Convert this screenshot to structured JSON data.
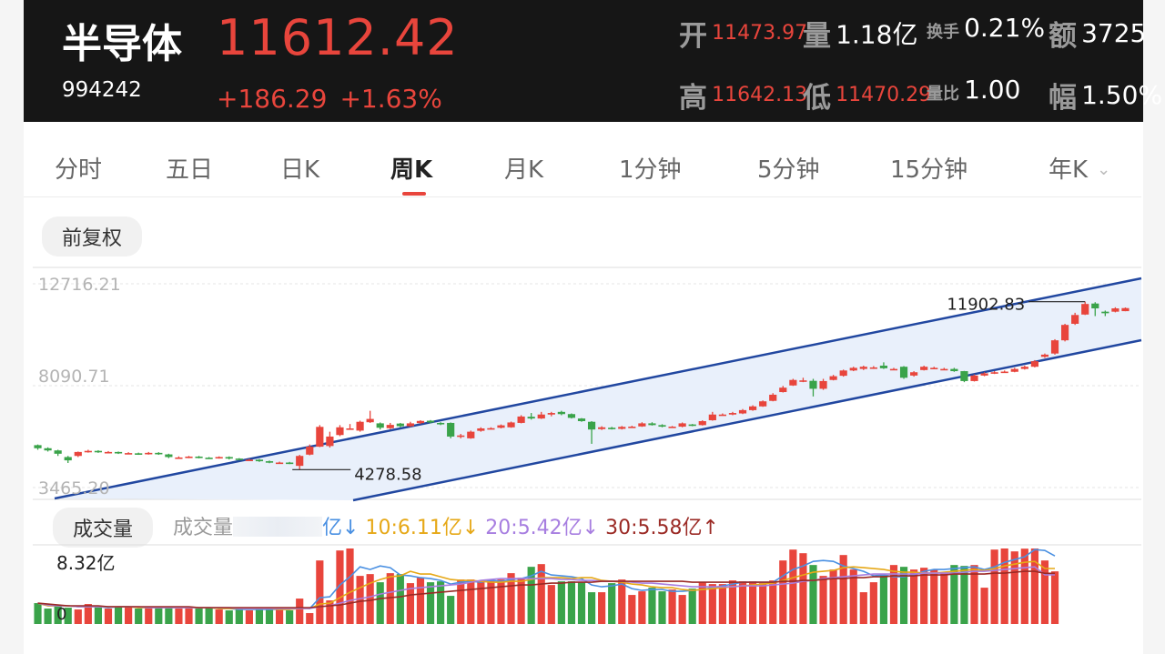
{
  "header": {
    "name": "半导体",
    "price": "11612.42",
    "code": "994242",
    "change": "+186.29",
    "change_pct": "+1.63%",
    "open_label": "开",
    "open_value": "11473.97",
    "volume_label": "量",
    "volume_value": "1.18亿",
    "turnover_label": "换手",
    "turnover_value": "0.21%",
    "amount_label": "额",
    "amount_value": "3725",
    "high_label": "高",
    "high_value": "11642.13",
    "low_label": "低",
    "low_value": "11470.29",
    "volratio_label": "量比",
    "volratio_value": "1.00",
    "amplitude_label": "幅",
    "amplitude_value": "1.50%"
  },
  "tabs": [
    "分时",
    "五日",
    "日K",
    "周K",
    "月K",
    "1分钟",
    "5分钟",
    "15分钟",
    "年K"
  ],
  "active_tab": "周K",
  "adjust_label": "前复权",
  "volume_section": {
    "label": "成交量",
    "legend_prefix": "成交量",
    "ma5_suffix": "亿↓",
    "ma10": "10:6.11亿↓",
    "ma20": "20:5.42亿↓",
    "ma30": "30:5.58亿↑"
  },
  "colors": {
    "up": "#e8453c",
    "down": "#3aa34a",
    "channel": "#2147a0",
    "ma5": "#4a90e2",
    "ma10": "#e6a817",
    "ma20": "#a77ee0",
    "ma30": "#9b2a25"
  },
  "chart_data": {
    "type": "candlestick",
    "price_axis_labels": [
      "12716.21",
      "8090.71",
      "3465.20"
    ],
    "ylim": [
      3465.2,
      12716.21
    ],
    "max_annotation": "11902.83",
    "min_annotation": "4278.58",
    "volume_axis_labels": [
      "8.32亿",
      "0"
    ],
    "volume_ylim": [
      0,
      8.32
    ],
    "candles": [
      {
        "o": 5390,
        "c": 5250,
        "h": 5420,
        "l": 5180
      },
      {
        "o": 5250,
        "c": 5150,
        "h": 5290,
        "l": 5100
      },
      {
        "o": 5150,
        "c": 5000,
        "h": 5180,
        "l": 4900
      },
      {
        "o": 4850,
        "c": 4700,
        "h": 4900,
        "l": 4580
      },
      {
        "o": 4900,
        "c": 5080,
        "h": 5100,
        "l": 4850
      },
      {
        "o": 5080,
        "c": 5130,
        "h": 5180,
        "l": 5050
      },
      {
        "o": 5130,
        "c": 5080,
        "h": 5160,
        "l": 5040
      },
      {
        "o": 5080,
        "c": 5080,
        "h": 5120,
        "l": 5030
      },
      {
        "o": 5080,
        "c": 5030,
        "h": 5100,
        "l": 4990
      },
      {
        "o": 5030,
        "c": 5030,
        "h": 5070,
        "l": 4990
      },
      {
        "o": 5020,
        "c": 4980,
        "h": 5050,
        "l": 4950
      },
      {
        "o": 4990,
        "c": 5040,
        "h": 5080,
        "l": 4960
      },
      {
        "o": 5040,
        "c": 4980,
        "h": 5070,
        "l": 4950
      },
      {
        "o": 4970,
        "c": 4850,
        "h": 5000,
        "l": 4800
      },
      {
        "o": 4830,
        "c": 4830,
        "h": 4880,
        "l": 4790
      },
      {
        "o": 4830,
        "c": 4870,
        "h": 4900,
        "l": 4800
      },
      {
        "o": 4870,
        "c": 4820,
        "h": 4900,
        "l": 4790
      },
      {
        "o": 4820,
        "c": 4800,
        "h": 4850,
        "l": 4770
      },
      {
        "o": 4800,
        "c": 4850,
        "h": 4880,
        "l": 4780
      },
      {
        "o": 4850,
        "c": 4780,
        "h": 4880,
        "l": 4740
      },
      {
        "o": 4780,
        "c": 4730,
        "h": 4800,
        "l": 4700
      },
      {
        "o": 4730,
        "c": 4730,
        "h": 4770,
        "l": 4700
      },
      {
        "o": 4730,
        "c": 4660,
        "h": 4760,
        "l": 4630
      },
      {
        "o": 4660,
        "c": 4600,
        "h": 4690,
        "l": 4570
      },
      {
        "o": 4600,
        "c": 4600,
        "h": 4640,
        "l": 4560
      },
      {
        "o": 4600,
        "c": 4560,
        "h": 4630,
        "l": 4530
      },
      {
        "o": 4450,
        "c": 4900,
        "h": 4950,
        "l": 4278.58
      },
      {
        "o": 4960,
        "c": 5320,
        "h": 5420,
        "l": 4930
      },
      {
        "o": 5320,
        "c": 6220,
        "h": 6300,
        "l": 5300
      },
      {
        "o": 5350,
        "c": 5780,
        "h": 6000,
        "l": 5280
      },
      {
        "o": 5850,
        "c": 6200,
        "h": 6300,
        "l": 5800
      },
      {
        "o": 6120,
        "c": 6150,
        "h": 6350,
        "l": 6100
      },
      {
        "o": 6050,
        "c": 6450,
        "h": 6500,
        "l": 6000
      },
      {
        "o": 6430,
        "c": 6580,
        "h": 6950,
        "l": 6400
      },
      {
        "o": 6380,
        "c": 6180,
        "h": 6420,
        "l": 6100
      },
      {
        "o": 6160,
        "c": 6310,
        "h": 6400,
        "l": 6120
      },
      {
        "o": 6370,
        "c": 6250,
        "h": 6400,
        "l": 6200
      },
      {
        "o": 6250,
        "c": 6380,
        "h": 6450,
        "l": 6220
      },
      {
        "o": 6390,
        "c": 6490,
        "h": 6520,
        "l": 6350
      },
      {
        "o": 6500,
        "c": 6420,
        "h": 6530,
        "l": 6380
      },
      {
        "o": 6400,
        "c": 6350,
        "h": 6430,
        "l": 6300
      },
      {
        "o": 6400,
        "c": 5780,
        "h": 6420,
        "l": 5700
      },
      {
        "o": 5830,
        "c": 5830,
        "h": 5900,
        "l": 5700
      },
      {
        "o": 5700,
        "c": 6000,
        "h": 6050,
        "l": 5680
      },
      {
        "o": 6040,
        "c": 6150,
        "h": 6200,
        "l": 6000
      },
      {
        "o": 6150,
        "c": 6160,
        "h": 6200,
        "l": 6100
      },
      {
        "o": 6180,
        "c": 6290,
        "h": 6330,
        "l": 6150
      },
      {
        "o": 6200,
        "c": 6420,
        "h": 6460,
        "l": 6180
      },
      {
        "o": 6400,
        "c": 6690,
        "h": 6750,
        "l": 6380
      },
      {
        "o": 6680,
        "c": 6600,
        "h": 6850,
        "l": 6550
      },
      {
        "o": 6600,
        "c": 6780,
        "h": 6900,
        "l": 6580
      },
      {
        "o": 6780,
        "c": 6850,
        "h": 6900,
        "l": 6700
      },
      {
        "o": 6900,
        "c": 6800,
        "h": 6950,
        "l": 6750
      },
      {
        "o": 6800,
        "c": 6630,
        "h": 6830,
        "l": 6600
      },
      {
        "o": 6600,
        "c": 6480,
        "h": 6620,
        "l": 6450
      },
      {
        "o": 6450,
        "c": 6100,
        "h": 6480,
        "l": 5450
      },
      {
        "o": 6120,
        "c": 6200,
        "h": 6250,
        "l": 6080
      },
      {
        "o": 6180,
        "c": 6130,
        "h": 6220,
        "l": 6100
      },
      {
        "o": 6130,
        "c": 6220,
        "h": 6260,
        "l": 6100
      },
      {
        "o": 6230,
        "c": 6230,
        "h": 6270,
        "l": 6180
      },
      {
        "o": 6240,
        "c": 6380,
        "h": 6430,
        "l": 6220
      },
      {
        "o": 6380,
        "c": 6300,
        "h": 6430,
        "l": 6280
      },
      {
        "o": 6300,
        "c": 6230,
        "h": 6340,
        "l": 6200
      },
      {
        "o": 6230,
        "c": 6230,
        "h": 6260,
        "l": 6190
      },
      {
        "o": 6230,
        "c": 6380,
        "h": 6420,
        "l": 6200
      },
      {
        "o": 6330,
        "c": 6270,
        "h": 6350,
        "l": 6250
      },
      {
        "o": 6300,
        "c": 6480,
        "h": 6520,
        "l": 6280
      },
      {
        "o": 6520,
        "c": 6780,
        "h": 6900,
        "l": 6500
      },
      {
        "o": 6780,
        "c": 6780,
        "h": 6830,
        "l": 6730
      },
      {
        "o": 6780,
        "c": 6850,
        "h": 6900,
        "l": 6750
      },
      {
        "o": 6830,
        "c": 6980,
        "h": 7030,
        "l": 6800
      },
      {
        "o": 6980,
        "c": 7150,
        "h": 7200,
        "l": 6950
      },
      {
        "o": 7150,
        "c": 7380,
        "h": 7420,
        "l": 7130
      },
      {
        "o": 7400,
        "c": 7680,
        "h": 7750,
        "l": 7380
      },
      {
        "o": 7800,
        "c": 8000,
        "h": 8080,
        "l": 7780
      },
      {
        "o": 8100,
        "c": 8350,
        "h": 8400,
        "l": 8080
      },
      {
        "o": 8300,
        "c": 8330,
        "h": 8450,
        "l": 8250
      },
      {
        "o": 8310,
        "c": 7950,
        "h": 8400,
        "l": 7600
      },
      {
        "o": 7950,
        "c": 8300,
        "h": 8400,
        "l": 7900
      },
      {
        "o": 8350,
        "c": 8520,
        "h": 8580,
        "l": 8330
      },
      {
        "o": 8540,
        "c": 8780,
        "h": 8820,
        "l": 8500
      },
      {
        "o": 8780,
        "c": 8900,
        "h": 8950,
        "l": 8750
      },
      {
        "o": 8850,
        "c": 8950,
        "h": 9000,
        "l": 8800
      },
      {
        "o": 8900,
        "c": 8920,
        "h": 8980,
        "l": 8850
      },
      {
        "o": 9000,
        "c": 8880,
        "h": 9150,
        "l": 8850
      },
      {
        "o": 8850,
        "c": 8850,
        "h": 8900,
        "l": 8800
      },
      {
        "o": 8950,
        "c": 8450,
        "h": 8980,
        "l": 8400
      },
      {
        "o": 8550,
        "c": 8700,
        "h": 8750,
        "l": 8500
      },
      {
        "o": 8800,
        "c": 8950,
        "h": 9000,
        "l": 8780
      },
      {
        "o": 8900,
        "c": 8900,
        "h": 8950,
        "l": 8850
      },
      {
        "o": 8850,
        "c": 8850,
        "h": 8900,
        "l": 8800
      },
      {
        "o": 8850,
        "c": 8750,
        "h": 8900,
        "l": 8720
      },
      {
        "o": 8750,
        "c": 8300,
        "h": 8760,
        "l": 8250
      },
      {
        "o": 8300,
        "c": 8550,
        "h": 8600,
        "l": 8280
      },
      {
        "o": 8550,
        "c": 8650,
        "h": 8700,
        "l": 8520
      },
      {
        "o": 8650,
        "c": 8700,
        "h": 8750,
        "l": 8620
      },
      {
        "o": 8730,
        "c": 8730,
        "h": 8780,
        "l": 8690
      },
      {
        "o": 8720,
        "c": 8850,
        "h": 8900,
        "l": 8700
      },
      {
        "o": 8850,
        "c": 8950,
        "h": 9000,
        "l": 8820
      },
      {
        "o": 8950,
        "c": 9200,
        "h": 9250,
        "l": 8920
      },
      {
        "o": 9400,
        "c": 9500,
        "h": 9550,
        "l": 9350
      },
      {
        "o": 9550,
        "c": 10150,
        "h": 10200,
        "l": 9500
      },
      {
        "o": 10150,
        "c": 10850,
        "h": 10900,
        "l": 10100
      },
      {
        "o": 10900,
        "c": 11300,
        "h": 11400,
        "l": 10850
      },
      {
        "o": 11320,
        "c": 11800,
        "h": 11902.83,
        "l": 11300
      },
      {
        "o": 11820,
        "c": 11600,
        "h": 11880,
        "l": 11250
      },
      {
        "o": 11450,
        "c": 11380,
        "h": 11500,
        "l": 11250
      },
      {
        "o": 11450,
        "c": 11600,
        "h": 11650,
        "l": 11420
      },
      {
        "o": 11473.97,
        "c": 11612.42,
        "h": 11642.13,
        "l": 11470.29
      }
    ],
    "volumes": [
      2.3,
      1.7,
      2.0,
      1.8,
      1.6,
      2.2,
      1.9,
      1.7,
      1.9,
      1.8,
      1.7,
      1.8,
      1.8,
      1.8,
      1.7,
      1.8,
      1.7,
      1.8,
      1.6,
      1.5,
      1.6,
      1.5,
      1.6,
      1.6,
      1.7,
      1.5,
      2.8,
      1.2,
      7.0,
      2.6,
      8.1,
      8.32,
      5.3,
      5.5,
      4.6,
      5.6,
      5.5,
      4.5,
      5.1,
      4.6,
      4.7,
      3.1,
      4.9,
      4.9,
      4.6,
      4.8,
      4.9,
      5.6,
      5.1,
      6.3,
      6.6,
      4.3,
      4.7,
      4.7,
      4.6,
      3.5,
      3.5,
      4.5,
      4.9,
      3.2,
      3.6,
      4.0,
      3.6,
      3.8,
      3.2,
      3.9,
      4.6,
      4.4,
      4.4,
      4.8,
      4.7,
      4.7,
      4.5,
      4.8,
      7.0,
      8.2,
      7.8,
      6.5,
      5.3,
      6.0,
      7.6,
      6.0,
      3.5,
      4.6,
      5.4,
      6.5,
      6.3,
      6.0,
      6.2,
      6.0,
      5.6,
      6.5,
      6.4,
      6.5,
      4.0,
      8.2,
      8.32,
      8.0,
      8.3,
      8.32,
      7.0,
      5.8
    ],
    "ma_series": [
      {
        "name": "5",
        "values": [
          2.3,
          2.0,
          2.0,
          2.0,
          1.9,
          1.9,
          1.9,
          1.8,
          1.9,
          1.9,
          1.8,
          1.8,
          1.8,
          1.8,
          1.8,
          1.8,
          1.8,
          1.8,
          1.7,
          1.7,
          1.6,
          1.6,
          1.6,
          1.6,
          1.6,
          1.6,
          1.8,
          1.7,
          2.9,
          3.0,
          4.3,
          5.2,
          6.3,
          6.0,
          6.4,
          6.2,
          5.4,
          5.3,
          5.1,
          5.0,
          4.8,
          4.4,
          4.6,
          4.7,
          4.6,
          4.8,
          4.7,
          4.9,
          5.0,
          5.3,
          5.8,
          5.4,
          5.3,
          5.2,
          5.0,
          4.3,
          4.1,
          4.2,
          4.4,
          3.9,
          3.7,
          3.8,
          3.8,
          3.6,
          3.6,
          3.7,
          3.8,
          4.0,
          4.2,
          4.4,
          4.6,
          4.6,
          4.6,
          4.6,
          5.3,
          6.0,
          6.4,
          6.9,
          7.0,
          6.9,
          6.4,
          6.1,
          5.8,
          5.3,
          5.4,
          5.2,
          5.2,
          5.4,
          5.8,
          6.0,
          6.0,
          6.1,
          6.2,
          6.3,
          6.0,
          6.3,
          6.8,
          7.1,
          7.4,
          8.2,
          8.1,
          7.5
        ]
      },
      {
        "name": "10",
        "values": [
          2.3,
          2.0,
          2.0,
          2.0,
          1.9,
          1.9,
          1.9,
          1.9,
          1.9,
          1.9,
          1.8,
          1.8,
          1.8,
          1.8,
          1.8,
          1.8,
          1.8,
          1.8,
          1.7,
          1.7,
          1.7,
          1.7,
          1.7,
          1.7,
          1.6,
          1.6,
          1.7,
          1.7,
          2.2,
          2.3,
          2.9,
          3.5,
          4.0,
          4.5,
          4.9,
          5.2,
          5.3,
          5.8,
          5.5,
          5.5,
          5.2,
          4.9,
          4.8,
          4.8,
          4.7,
          4.6,
          4.6,
          4.7,
          4.7,
          4.9,
          5.1,
          5.1,
          5.1,
          5.0,
          5.1,
          5.1,
          4.8,
          4.7,
          4.6,
          4.4,
          4.3,
          4.1,
          4.0,
          4.0,
          3.8,
          3.7,
          3.8,
          3.9,
          4.0,
          4.1,
          4.2,
          4.3,
          4.4,
          4.5,
          4.8,
          5.1,
          5.4,
          5.7,
          5.8,
          5.9,
          6.2,
          6.3,
          6.2,
          6.1,
          6.0,
          5.8,
          5.7,
          5.7,
          5.6,
          5.6,
          5.7,
          5.8,
          5.9,
          6.0,
          5.9,
          6.1,
          6.4,
          6.6,
          6.8,
          6.9,
          6.11,
          6.11
        ]
      },
      {
        "name": "20",
        "values": [
          2.3,
          2.1,
          2.0,
          2.0,
          1.9,
          1.9,
          1.9,
          1.9,
          1.9,
          1.9,
          1.9,
          1.8,
          1.8,
          1.8,
          1.8,
          1.8,
          1.8,
          1.8,
          1.8,
          1.8,
          1.7,
          1.7,
          1.7,
          1.7,
          1.7,
          1.7,
          1.7,
          1.7,
          1.9,
          2.0,
          2.3,
          2.6,
          2.8,
          3.0,
          3.3,
          3.5,
          3.7,
          3.9,
          4.0,
          4.1,
          4.2,
          4.3,
          4.4,
          4.6,
          4.8,
          4.9,
          5.0,
          5.0,
          5.0,
          5.0,
          5.0,
          5.0,
          4.9,
          4.9,
          4.8,
          4.8,
          4.7,
          4.7,
          4.7,
          4.6,
          4.5,
          4.5,
          4.4,
          4.3,
          4.2,
          4.1,
          4.1,
          4.1,
          4.1,
          4.1,
          4.2,
          4.2,
          4.2,
          4.3,
          4.4,
          4.5,
          4.7,
          4.8,
          5.0,
          5.1,
          5.2,
          5.3,
          5.4,
          5.5,
          5.5,
          5.5,
          5.5,
          5.5,
          5.6,
          5.6,
          5.6,
          5.6,
          5.7,
          5.8,
          5.8,
          5.9,
          6.0,
          6.1,
          6.2,
          6.3,
          5.42,
          5.42
        ]
      },
      {
        "name": "30",
        "values": [
          2.3,
          2.2,
          2.1,
          2.0,
          2.0,
          2.0,
          2.0,
          1.9,
          1.9,
          1.9,
          1.9,
          1.9,
          1.9,
          1.9,
          1.9,
          1.9,
          1.8,
          1.8,
          1.8,
          1.8,
          1.8,
          1.8,
          1.8,
          1.8,
          1.8,
          1.8,
          1.8,
          1.8,
          1.9,
          2.0,
          2.1,
          2.3,
          2.5,
          2.6,
          2.8,
          2.9,
          3.0,
          3.2,
          3.3,
          3.4,
          3.5,
          3.6,
          3.7,
          3.8,
          3.9,
          4.0,
          4.1,
          4.2,
          4.3,
          4.3,
          4.4,
          4.5,
          4.5,
          4.6,
          4.6,
          4.6,
          4.7,
          4.7,
          4.7,
          4.7,
          4.7,
          4.7,
          4.7,
          4.7,
          4.7,
          4.6,
          4.6,
          4.6,
          4.6,
          4.6,
          4.6,
          4.6,
          4.6,
          4.6,
          4.7,
          4.7,
          4.8,
          4.8,
          4.9,
          5.0,
          5.0,
          5.1,
          5.1,
          5.2,
          5.2,
          5.3,
          5.3,
          5.3,
          5.4,
          5.4,
          5.4,
          5.5,
          5.5,
          5.5,
          5.5,
          5.6,
          5.6,
          5.7,
          5.8,
          5.8,
          5.58,
          5.58
        ]
      }
    ]
  }
}
